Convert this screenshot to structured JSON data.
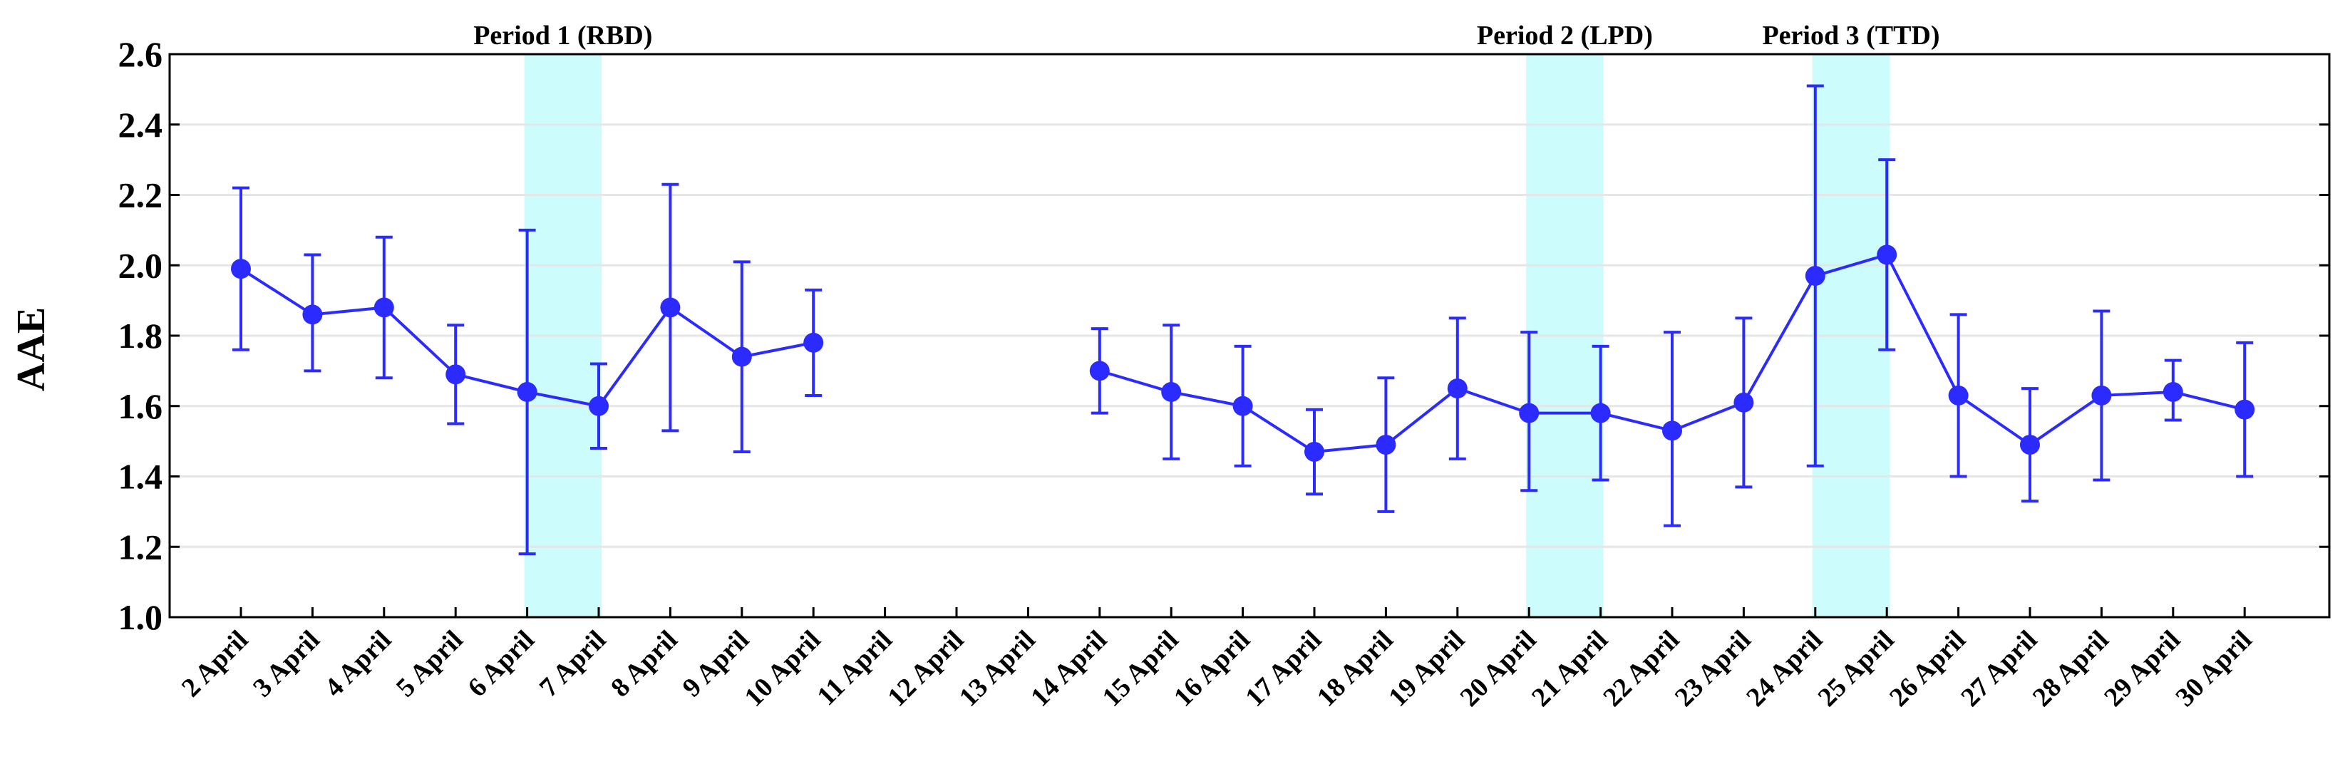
{
  "chart_data": {
    "type": "line",
    "title": "",
    "xlabel": "",
    "ylabel": "AAE",
    "ylim": [
      1.0,
      2.6
    ],
    "yticks": [
      "1.0",
      "1.2",
      "1.4",
      "1.6",
      "1.8",
      "2.0",
      "2.2",
      "2.4",
      "2.6"
    ],
    "grid": true,
    "categories": [
      "2 April",
      "3 April",
      "4 April",
      "5 April",
      "6 April",
      "7 April",
      "8 April",
      "9 April",
      "10 April",
      "11 April",
      "12 April",
      "13 April",
      "14 April",
      "15 April",
      "16 April",
      "17 April",
      "18 April",
      "19 April",
      "20 April",
      "21 April",
      "22 April",
      "23 April",
      "24 April",
      "25 April",
      "26 April",
      "27 April",
      "28 April",
      "29 April",
      "30 April"
    ],
    "series": [
      {
        "name": "AAE",
        "color": "#2b2bff",
        "values": [
          1.99,
          1.86,
          1.88,
          1.69,
          1.64,
          1.6,
          1.88,
          1.74,
          1.78,
          null,
          null,
          null,
          1.7,
          1.64,
          1.6,
          1.47,
          1.49,
          1.65,
          1.58,
          1.58,
          1.53,
          1.61,
          1.97,
          2.03,
          1.63,
          1.49,
          1.63,
          1.64,
          1.59
        ],
        "err_low": [
          1.76,
          1.7,
          1.68,
          1.55,
          1.18,
          1.48,
          1.53,
          1.47,
          1.63,
          null,
          null,
          null,
          1.58,
          1.45,
          1.43,
          1.35,
          1.3,
          1.45,
          1.36,
          1.39,
          1.26,
          1.37,
          1.43,
          1.76,
          1.4,
          1.33,
          1.39,
          1.56,
          1.4
        ],
        "err_high": [
          2.22,
          2.03,
          2.08,
          1.83,
          2.1,
          1.72,
          2.23,
          2.01,
          1.93,
          null,
          null,
          null,
          1.82,
          1.83,
          1.77,
          1.59,
          1.68,
          1.85,
          1.81,
          1.77,
          1.81,
          1.85,
          2.51,
          2.3,
          1.86,
          1.65,
          1.87,
          1.73,
          1.78
        ]
      }
    ],
    "periods": [
      {
        "label": "Period 1 (RBD)",
        "from": "6 April",
        "to": "7 April",
        "color": "#ccfcfc"
      },
      {
        "label": "Period 2 (LPD)",
        "from": "20 April",
        "to": "21 April",
        "color": "#ccfcfc"
      },
      {
        "label": "Period 3 (TTD)",
        "from": "24 April",
        "to": "25 April",
        "color": "#ccfcfc"
      }
    ]
  }
}
